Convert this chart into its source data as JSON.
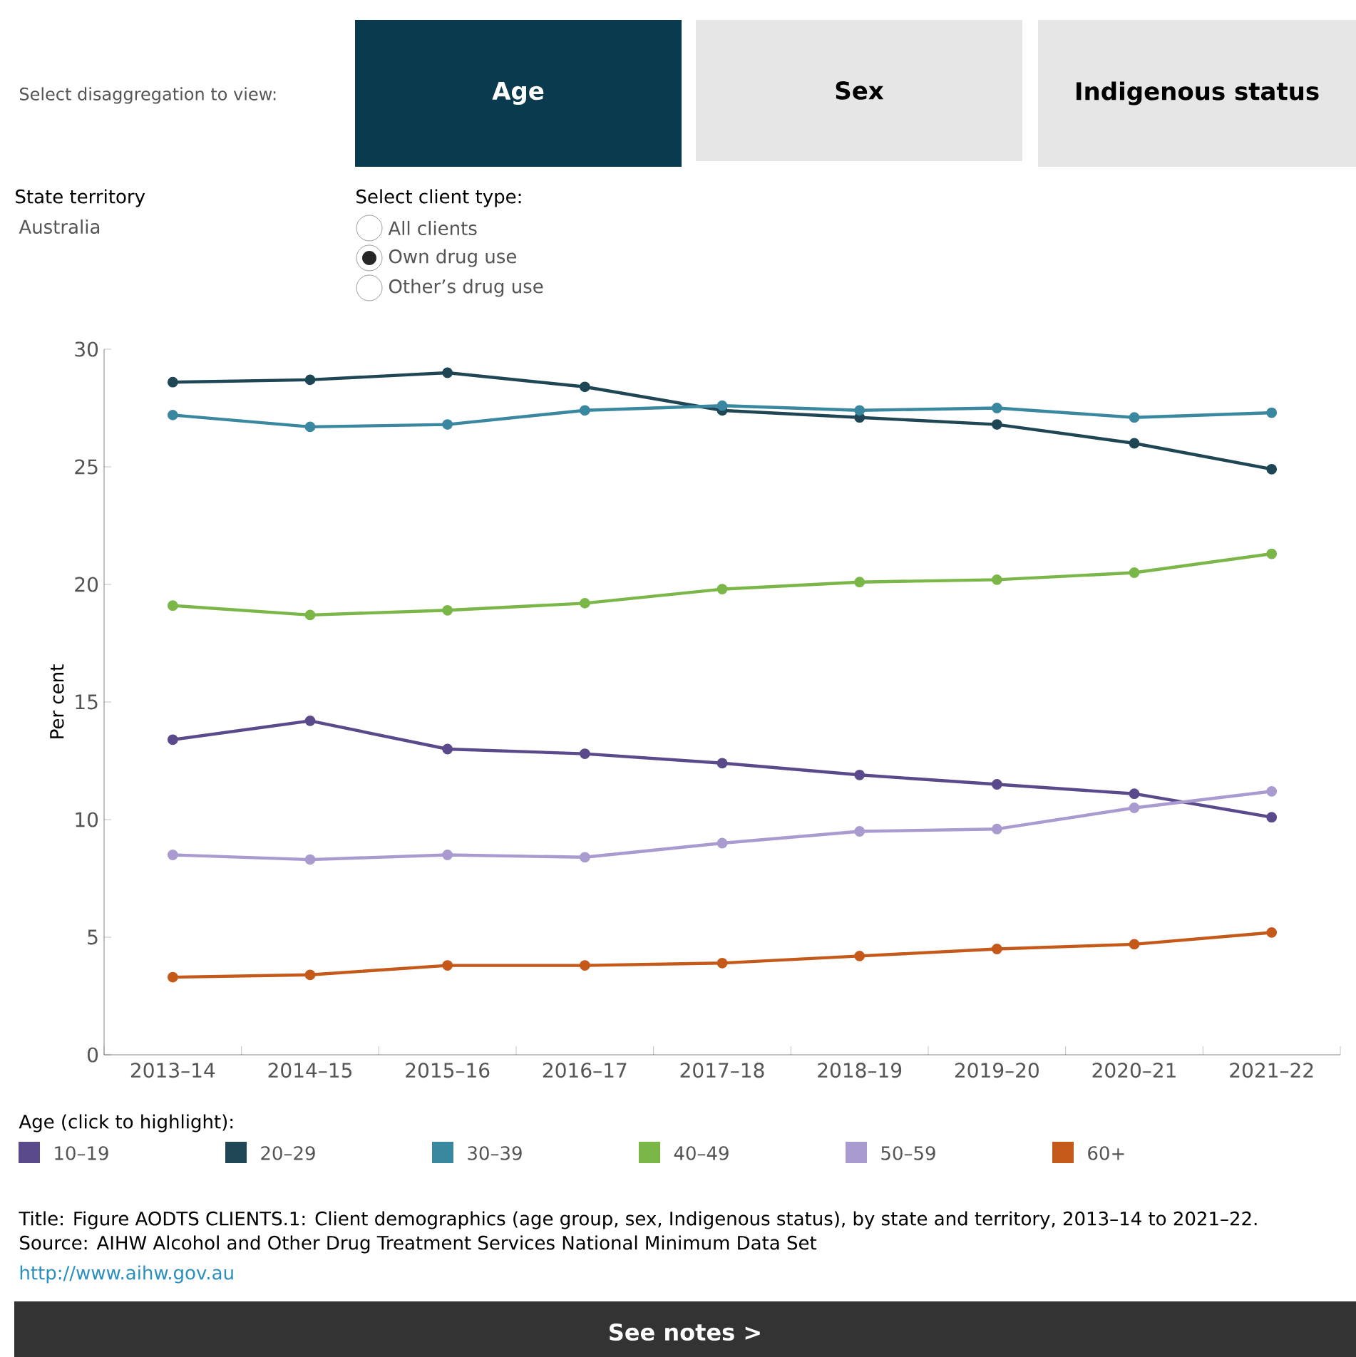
{
  "chart_data": {
    "type": "line",
    "title": "Title: Figure AODTS CLIENTS.1: Client demographics (age group, sex, Indigenous status), by state and territory, 2013–14 to 2021–22.",
    "ylabel": "Per cent",
    "legend_title": "Age (click to highlight):",
    "categories": [
      "2013–14",
      "2014–15",
      "2015–16",
      "2016–17",
      "2017–18",
      "2018–19",
      "2019–20",
      "2020–21",
      "2021–22"
    ],
    "series": [
      {
        "name": "10–19",
        "color": "#5b4a8b",
        "values": [
          13.4,
          14.2,
          13.0,
          12.8,
          12.4,
          11.9,
          11.5,
          11.1,
          10.1
        ]
      },
      {
        "name": "20–29",
        "color": "#1f4654",
        "values": [
          28.6,
          28.7,
          29.0,
          28.4,
          27.4,
          27.1,
          26.8,
          26.0,
          24.9
        ]
      },
      {
        "name": "30–39",
        "color": "#3a87a0",
        "values": [
          27.2,
          26.7,
          26.8,
          27.4,
          27.6,
          27.4,
          27.5,
          27.1,
          27.3
        ]
      },
      {
        "name": "40–49",
        "color": "#7ab648",
        "values": [
          19.1,
          18.7,
          18.9,
          19.2,
          19.8,
          20.1,
          20.2,
          20.5,
          21.3
        ]
      },
      {
        "name": "50–59",
        "color": "#a99bcf",
        "values": [
          8.5,
          8.3,
          8.5,
          8.4,
          9.0,
          9.5,
          9.6,
          10.5,
          11.2
        ]
      },
      {
        "name": "60+",
        "color": "#c4591a",
        "values": [
          3.3,
          3.4,
          3.8,
          3.8,
          3.9,
          4.2,
          4.5,
          4.7,
          5.2
        ]
      }
    ],
    "ylim": [
      0,
      30
    ],
    "yticks": [
      0,
      5,
      10,
      15,
      20,
      25,
      30
    ],
    "grid": false,
    "legend": "bottom",
    "marker": "circle",
    "line_style": "solid",
    "annotations": [
      "Select disaggregation to view:",
      "Age",
      "Sex",
      "Indigenous status",
      "State territory",
      "Australia",
      "Select client type:",
      "All clients",
      "Own drug use",
      "Other’s drug use",
      "Source: AIHW Alcohol and Other Drug Treatment Services National Minimum Data Set",
      "http://www.aihw.gov.au",
      "See notes >"
    ]
  }
}
